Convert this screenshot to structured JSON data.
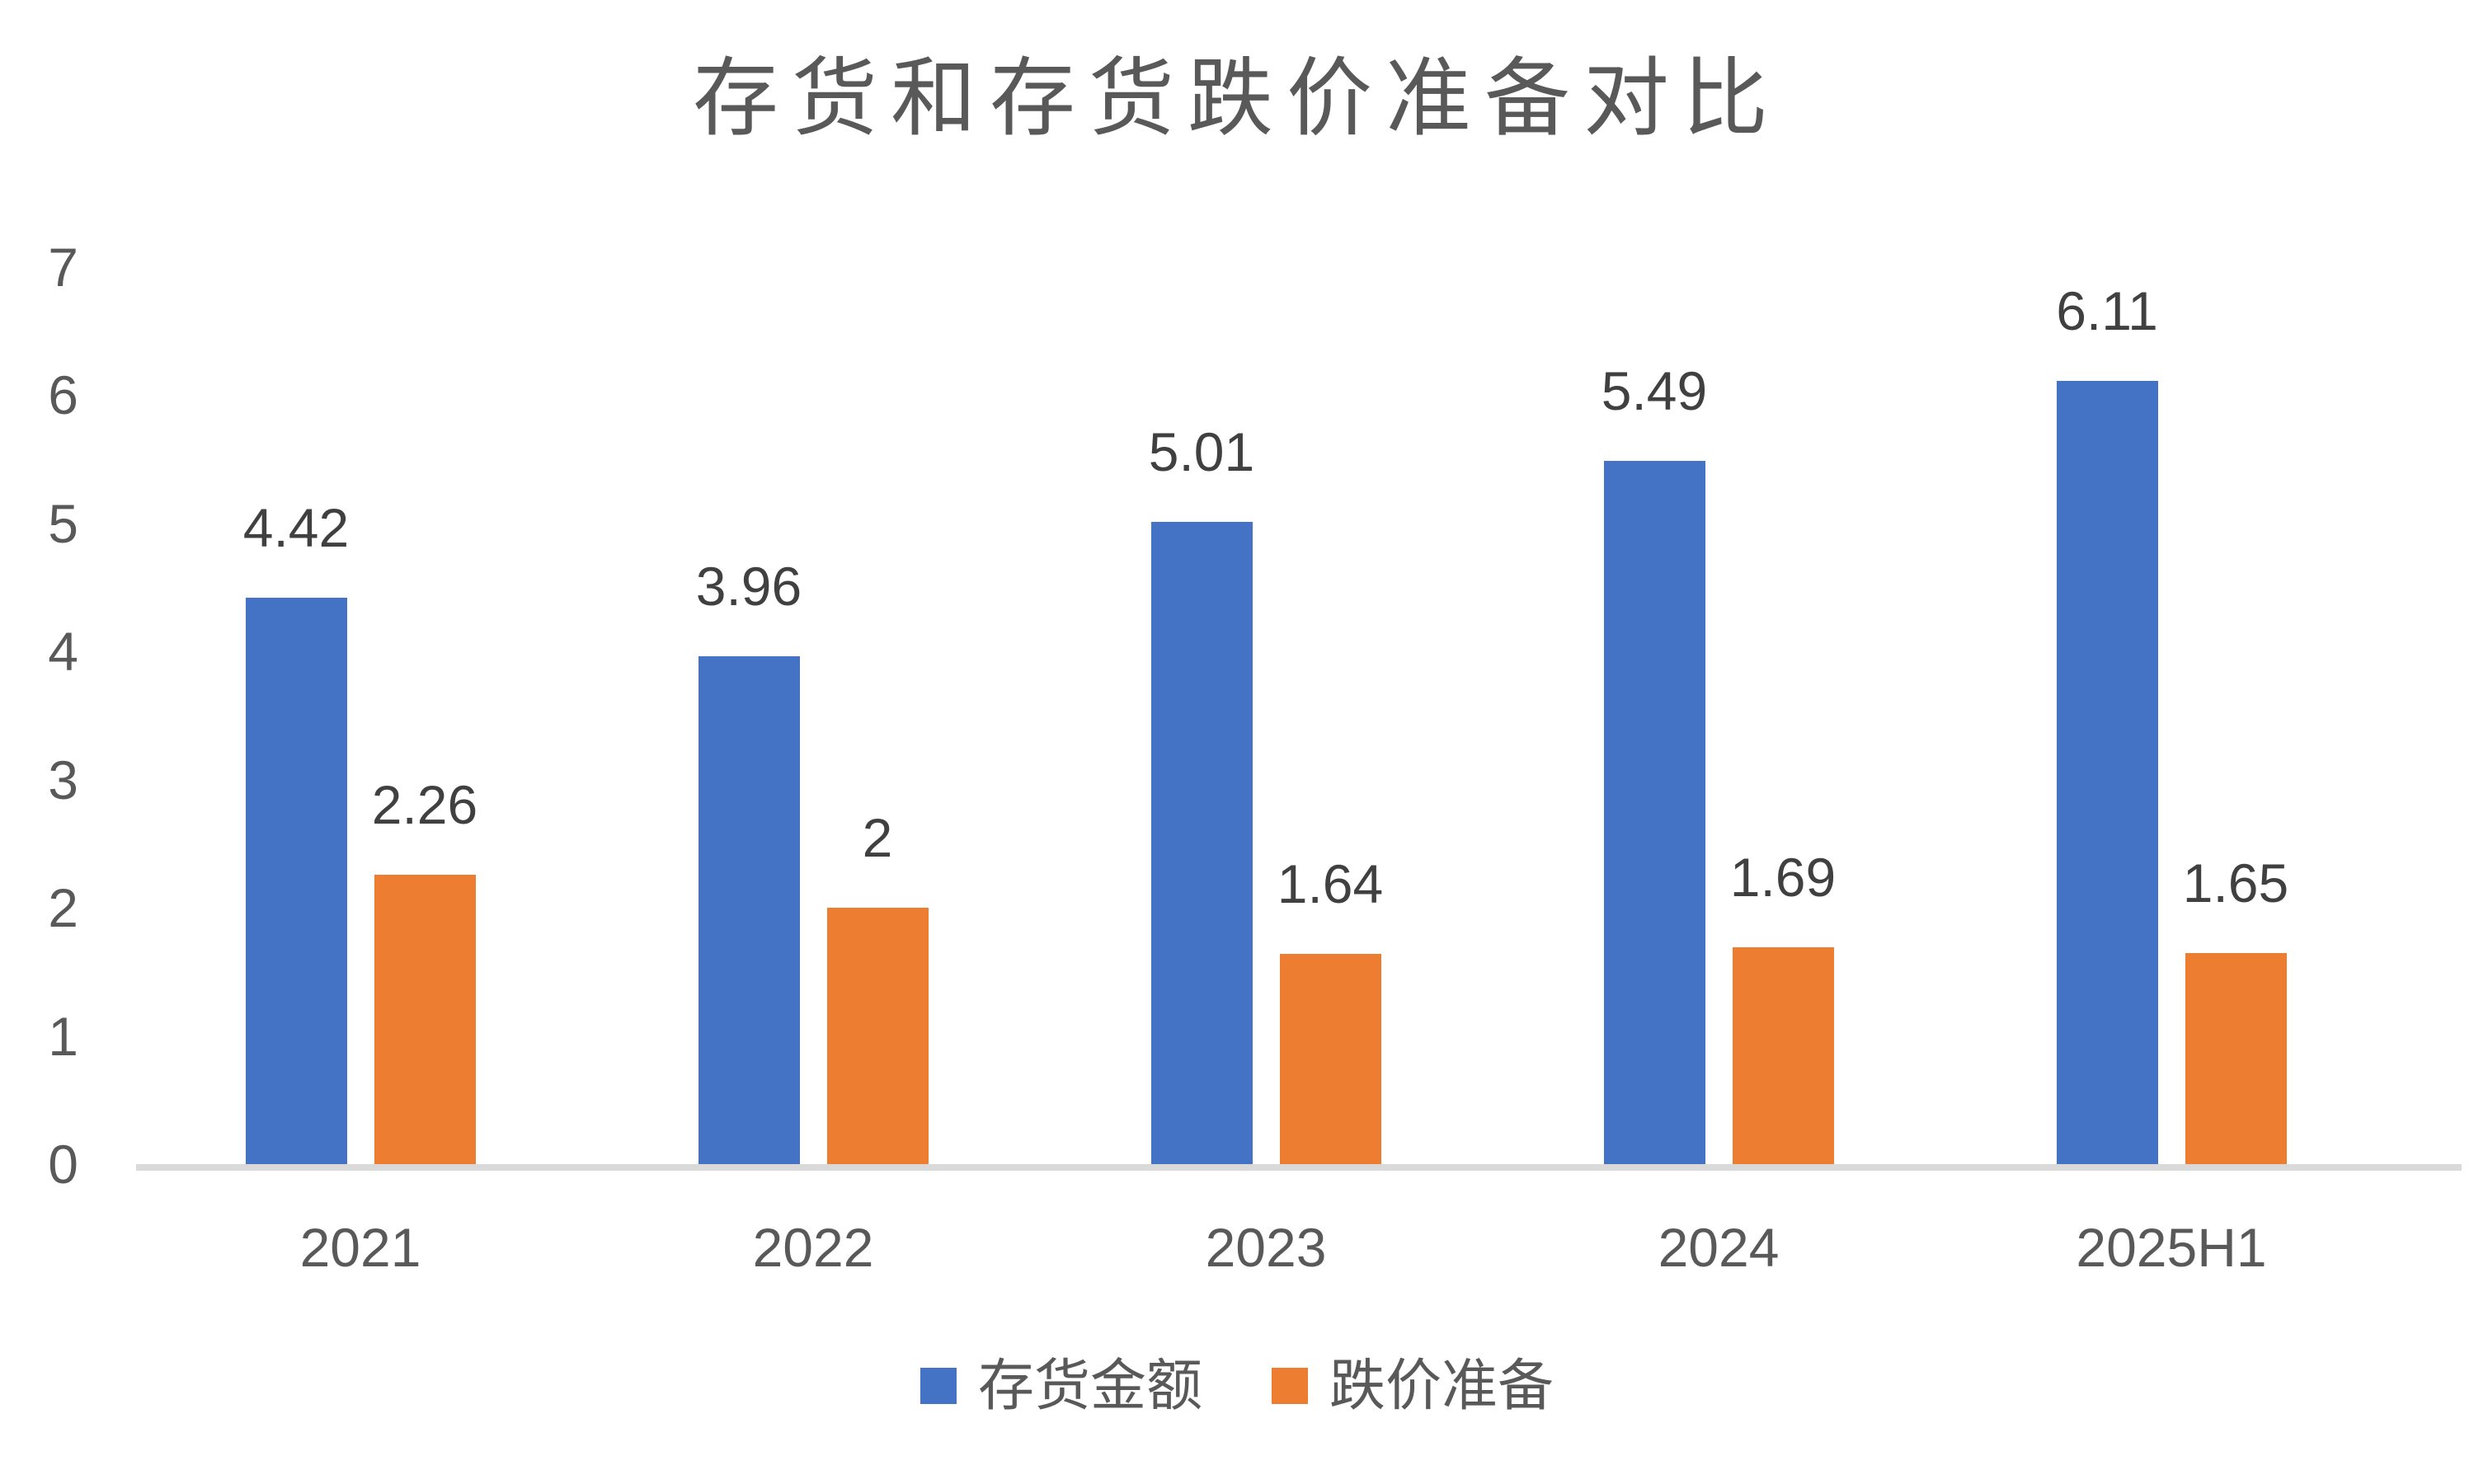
{
  "chart_data": {
    "type": "bar",
    "title": "存货和存货跌价准备对比",
    "categories": [
      "2021",
      "2022",
      "2023",
      "2024",
      "2025H1"
    ],
    "series": [
      {
        "name": "存货金额",
        "color": "#4472C4",
        "values": [
          4.42,
          3.96,
          5.01,
          5.49,
          6.11
        ],
        "labels": [
          "4.42",
          "3.96",
          "5.01",
          "5.49",
          "6.11"
        ]
      },
      {
        "name": "跌价准备",
        "color": "#ED7D31",
        "values": [
          2.26,
          2,
          1.64,
          1.69,
          1.65
        ],
        "labels": [
          "2.26",
          "2",
          "1.64",
          "1.69",
          "1.65"
        ]
      }
    ],
    "xlabel": "",
    "ylabel": "",
    "y_axis": {
      "min": 0,
      "max": 7,
      "step": 1,
      "ticks": [
        0,
        1,
        2,
        3,
        4,
        5,
        6,
        7
      ]
    },
    "grid": false,
    "legend_position": "bottom",
    "colors": {
      "axis_line": "#d9d9d9",
      "title_text": "#595959",
      "axis_text": "#595959",
      "data_label_text": "#404040",
      "background": "#ffffff"
    }
  }
}
